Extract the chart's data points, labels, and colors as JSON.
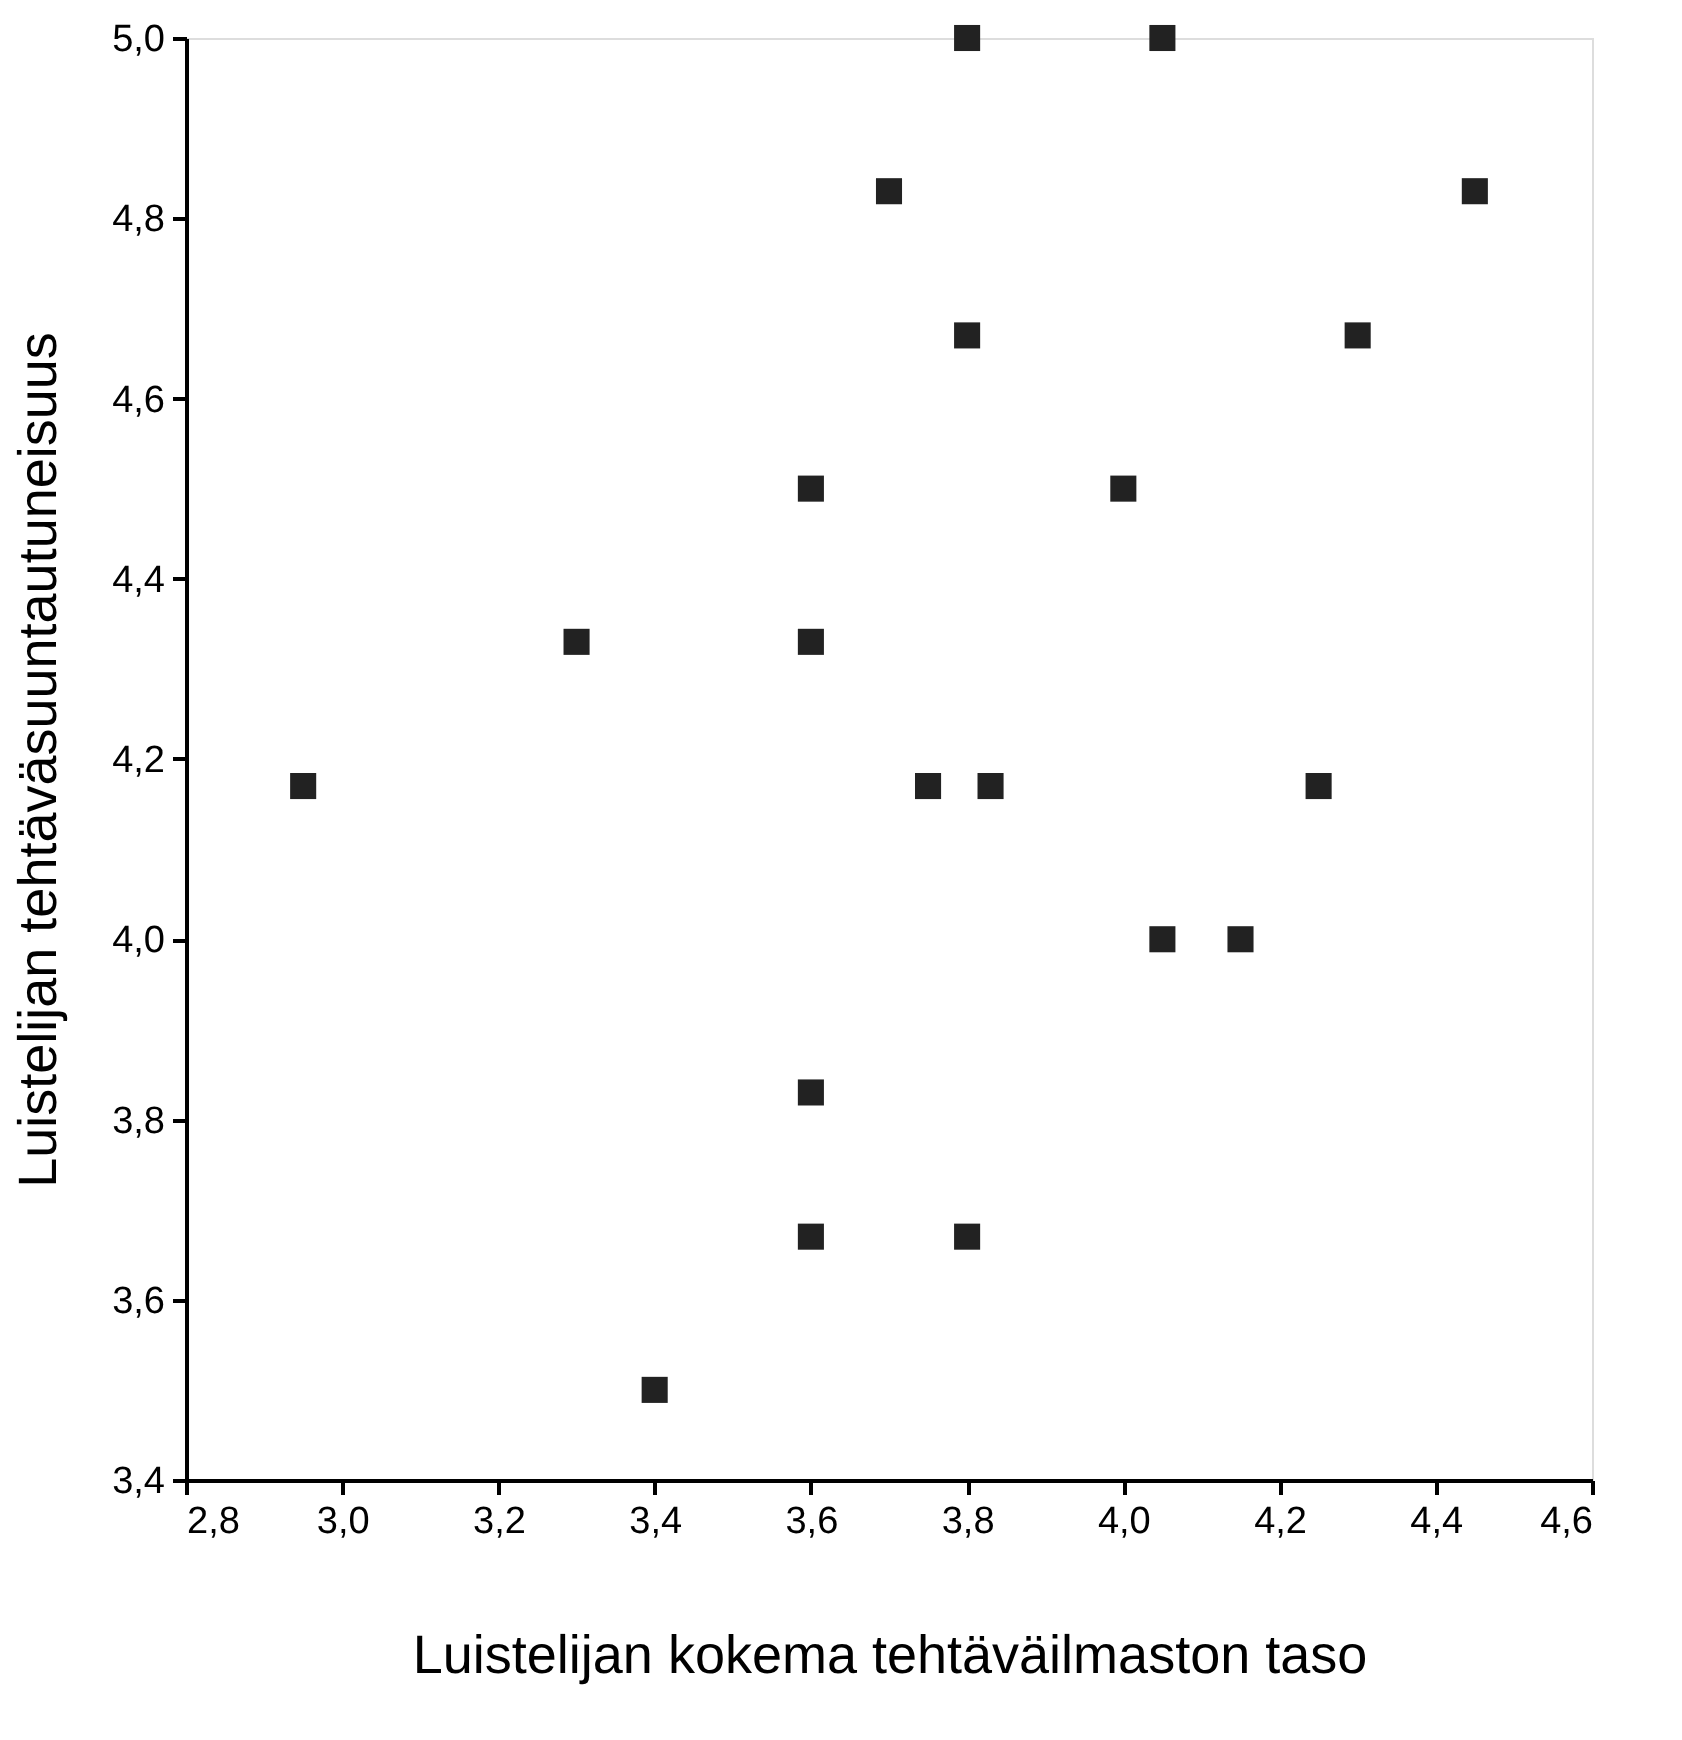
{
  "chart_data": {
    "type": "scatter",
    "xlabel": "Luistelijan kokema tehtäväilmaston taso",
    "ylabel": "Luistelijan tehtäväsuuntautuneisuus",
    "x": [
      3.8,
      4.05,
      3.7,
      4.45,
      3.8,
      4.3,
      3.6,
      4.0,
      3.3,
      3.6,
      2.95,
      3.75,
      3.83,
      4.25,
      4.05,
      4.15,
      3.6,
      3.6,
      3.8,
      3.4
    ],
    "series": [
      {
        "color": "#222222",
        "values": [
          5.0,
          5.0,
          4.83,
          4.83,
          4.67,
          4.67,
          4.5,
          4.5,
          4.33,
          4.33,
          4.17,
          4.17,
          4.17,
          4.17,
          4.0,
          4.0,
          3.83,
          3.67,
          3.67,
          3.5
        ]
      }
    ],
    "xlim": [
      2.8,
      4.6
    ],
    "xticks": [
      {
        "value": 2.8,
        "label": "2,8"
      },
      {
        "value": 3.0,
        "label": "3,0"
      },
      {
        "value": 3.2,
        "label": "3,2"
      },
      {
        "value": 3.4,
        "label": "3,4"
      },
      {
        "value": 3.6,
        "label": "3,6"
      },
      {
        "value": 3.8,
        "label": "3,8"
      },
      {
        "value": 4.0,
        "label": "4,0"
      },
      {
        "value": 4.2,
        "label": "4,2"
      },
      {
        "value": 4.4,
        "label": "4,4"
      },
      {
        "value": 4.6,
        "label": "4,6"
      }
    ],
    "ylim": [
      3.4,
      5.0
    ],
    "yticks": [
      {
        "value": 3.4,
        "label": "3,4"
      },
      {
        "value": 3.6,
        "label": "3,6"
      },
      {
        "value": 3.8,
        "label": "3,8"
      },
      {
        "value": 4.0,
        "label": "4,0"
      },
      {
        "value": 4.2,
        "label": "4,2"
      },
      {
        "value": 4.4,
        "label": "4,4"
      },
      {
        "value": 4.6,
        "label": "4,6"
      },
      {
        "value": 4.8,
        "label": "4,8"
      },
      {
        "value": 5.0,
        "label": "5,0"
      }
    ],
    "marker": "square",
    "grid": false
  }
}
